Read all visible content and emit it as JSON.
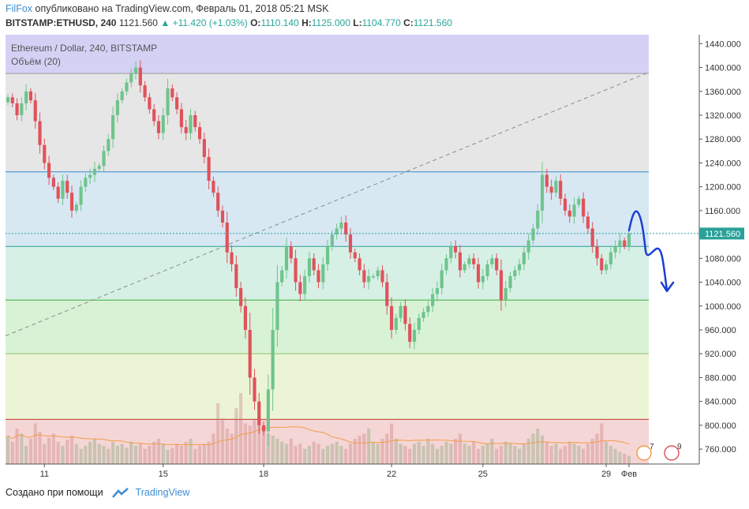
{
  "header": {
    "brand": "FilFox",
    "published": "опубликовано на TradingView.com, Февраль 01, 2018 05:21 MSK",
    "symbol": "BITSTAMP:ETHUSD, 240",
    "last": "1121.560",
    "change": "+11.420 (+1.03%)",
    "o_label": "O:",
    "o_value": "1110.140",
    "h_label": "H:",
    "h_value": "1125.000",
    "l_label": "L:",
    "l_value": "1104.770",
    "c_label": "C:",
    "c_value": "1121.560"
  },
  "legend": {
    "title": "Ethereum / Dollar, 240, BITSTAMP",
    "volume": "Объём (20)"
  },
  "footer": {
    "created_with": "Создано при помощи",
    "brand": "TradingView"
  },
  "colors": {
    "up": "#26a69a",
    "up_candle": "#6fc48b",
    "down": "#e0525b",
    "price_line": "#2aa198",
    "arrow": "#1a3ed6"
  },
  "chart_data": {
    "type": "candlestick",
    "symbol": "BITSTAMP:ETHUSD",
    "timeframe": "240",
    "x_ticks": [
      "11",
      "15",
      "18",
      "22",
      "25",
      "29",
      "Фев"
    ],
    "y_ticks": [
      760,
      800,
      840,
      880,
      920,
      960,
      1000,
      1040,
      1080,
      1120,
      1160,
      1200,
      1240,
      1280,
      1320,
      1360,
      1400,
      1440
    ],
    "ylim": [
      735,
      1455
    ],
    "last_price": 1121.56,
    "last_price_label": "1121.560",
    "fib_levels": [
      1390,
      1225,
      1100,
      1010,
      920,
      810
    ],
    "fib_zones": [
      "#d4d1f5",
      "#e6e6e6",
      "#d7e8f3",
      "#d6f0e6",
      "#d8f2d6",
      "#ebf5d6",
      "#f5d6d6"
    ],
    "trendline": {
      "from": 950,
      "to": 1392
    },
    "close": [
      1350,
      1340,
      1320,
      1340,
      1360,
      1345,
      1310,
      1270,
      1240,
      1215,
      1200,
      1180,
      1210,
      1190,
      1160,
      1170,
      1200,
      1215,
      1220,
      1230,
      1235,
      1260,
      1280,
      1320,
      1345,
      1360,
      1375,
      1390,
      1400,
      1370,
      1350,
      1330,
      1310,
      1290,
      1320,
      1365,
      1350,
      1330,
      1300,
      1290,
      1320,
      1300,
      1280,
      1250,
      1210,
      1190,
      1160,
      1140,
      1090,
      1070,
      1030,
      1000,
      960,
      880,
      840,
      800,
      790,
      860,
      960,
      1040,
      1060,
      1100,
      1080,
      1040,
      1020,
      1050,
      1080,
      1060,
      1040,
      1070,
      1100,
      1120,
      1130,
      1140,
      1120,
      1090,
      1080,
      1060,
      1040,
      1050,
      1050,
      1060,
      1040,
      1000,
      960,
      980,
      1000,
      970,
      940,
      960,
      980,
      990,
      1000,
      1020,
      1030,
      1060,
      1080,
      1100,
      1090,
      1060,
      1070,
      1080,
      1070,
      1040,
      1050,
      1070,
      1080,
      1060,
      1010,
      1030,
      1050,
      1060,
      1070,
      1090,
      1110,
      1130,
      1160,
      1220,
      1200,
      1190,
      1210,
      1180,
      1160,
      1150,
      1170,
      1180,
      1150,
      1130,
      1100,
      1080,
      1060,
      1070,
      1090,
      1100,
      1110,
      1100,
      1121.56
    ],
    "volume": [
      28,
      22,
      35,
      30,
      18,
      25,
      40,
      32,
      20,
      26,
      30,
      22,
      18,
      24,
      28,
      20,
      15,
      18,
      22,
      25,
      20,
      18,
      15,
      22,
      18,
      20,
      16,
      22,
      18,
      20,
      15,
      18,
      22,
      25,
      20,
      14,
      16,
      20,
      18,
      22,
      25,
      15,
      18,
      20,
      22,
      30,
      60,
      45,
      35,
      30,
      55,
      70,
      40,
      38,
      45,
      60,
      35,
      30,
      28,
      25,
      22,
      20,
      25,
      18,
      20,
      15,
      18,
      22,
      20,
      15,
      18,
      20,
      22,
      18,
      15,
      20,
      25,
      28,
      30,
      35,
      22,
      20,
      25,
      30,
      40,
      25,
      20,
      18,
      15,
      20,
      22,
      18,
      25,
      20,
      15,
      18,
      22,
      20,
      25,
      30,
      20,
      18,
      22,
      15,
      18,
      20,
      25,
      15,
      18,
      22,
      20,
      18,
      15,
      20,
      25,
      30,
      35,
      28,
      22,
      18,
      20,
      15,
      18,
      22,
      20,
      18,
      15,
      20,
      25,
      30,
      40,
      22,
      18,
      15,
      12,
      10,
      8
    ]
  }
}
